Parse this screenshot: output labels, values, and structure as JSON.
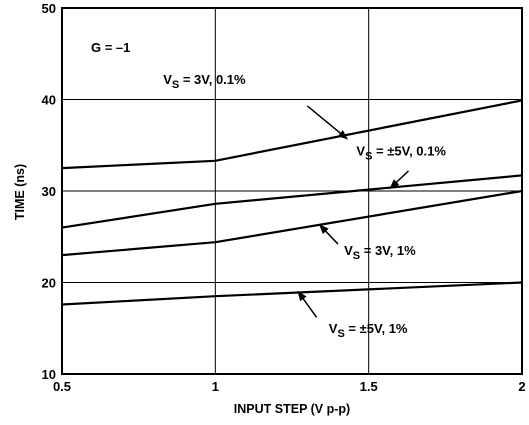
{
  "chart_data": {
    "type": "line",
    "xlabel": "INPUT STEP (V p-p)",
    "ylabel": "TIME (ns)",
    "xlim": [
      0.5,
      2
    ],
    "ylim": [
      10,
      50
    ],
    "x_ticks": [
      0.5,
      1,
      1.5,
      2
    ],
    "x_tick_labels": [
      "0.5",
      "1",
      "1.5",
      "2"
    ],
    "y_ticks": [
      10,
      20,
      30,
      40,
      50
    ],
    "y_tick_labels": [
      "10",
      "20",
      "30",
      "40",
      "50"
    ],
    "grid": true,
    "gain_label": "G = –1",
    "series": [
      {
        "name": "VS = 3V, 0.1%",
        "x": [
          0.5,
          1,
          2
        ],
        "y": [
          32.5,
          33.3,
          39.9
        ]
      },
      {
        "name": "VS = ±5V, 0.1%",
        "x": [
          0.5,
          1,
          2
        ],
        "y": [
          26.0,
          28.6,
          31.7
        ]
      },
      {
        "name": "VS = 3V, 1%",
        "x": [
          0.5,
          1,
          2
        ],
        "y": [
          23.0,
          24.4,
          30.0
        ]
      },
      {
        "name": "VS = ±5V, 1%",
        "x": [
          0.5,
          1,
          2
        ],
        "y": [
          17.6,
          18.5,
          20.0
        ]
      }
    ],
    "annotations": [
      {
        "series": 0,
        "prefix": "V",
        "sub": "S",
        "suffix": " = 3V, 0.1%",
        "text_x": 0.83,
        "text_y": 41.7,
        "arrow_from": [
          1.3,
          39.3
        ],
        "arrow_to": [
          1.43,
          35.7
        ]
      },
      {
        "series": 1,
        "prefix": "V",
        "sub": "S",
        "suffix": " = ±5V, 0.1%",
        "text_x": 1.46,
        "text_y": 33.9,
        "arrow_from": [
          1.63,
          32.2
        ],
        "arrow_to": [
          1.57,
          30.3
        ]
      },
      {
        "series": 2,
        "prefix": "V",
        "sub": "S",
        "suffix": " = 3V, 1%",
        "text_x": 1.42,
        "text_y": 23.0,
        "arrow_from": [
          1.4,
          24.2
        ],
        "arrow_to": [
          1.34,
          26.3
        ]
      },
      {
        "series": 3,
        "prefix": "V",
        "sub": "S",
        "suffix": " = ±5V, 1%",
        "text_x": 1.37,
        "text_y": 14.5,
        "arrow_from": [
          1.33,
          16.2
        ],
        "arrow_to": [
          1.27,
          19.0
        ]
      }
    ]
  }
}
